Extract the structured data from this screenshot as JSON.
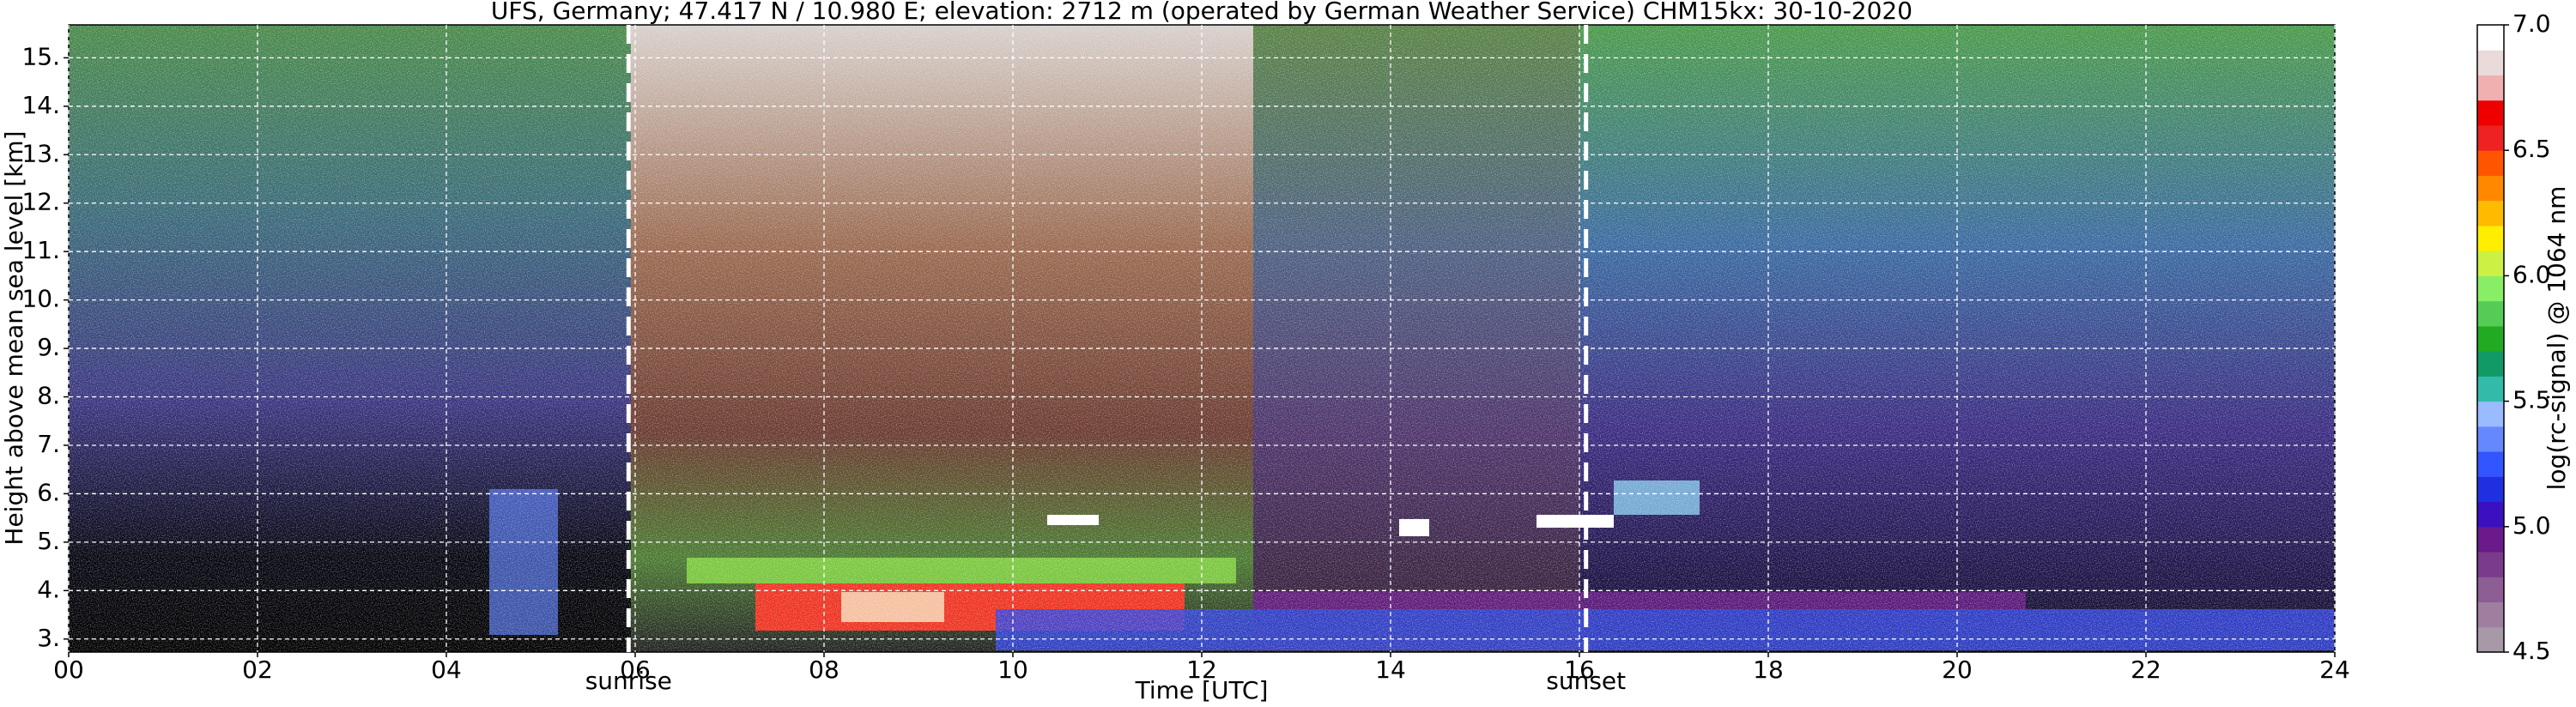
{
  "chart_data": {
    "type": "heatmap",
    "title": "UFS, Germany; 47.417 N / 10.980 E; elevation: 2712 m  (operated by German Weather Service)    CHM15kx: 30-10-2020",
    "x_label": "Time [UTC]",
    "y_label": "Height above mean sea level [km]",
    "xlim": [
      0,
      24
    ],
    "xticks": [
      {
        "value": 0,
        "label": "00"
      },
      {
        "value": 2,
        "label": "02"
      },
      {
        "value": 4,
        "label": "04"
      },
      {
        "value": 6,
        "label": "06"
      },
      {
        "value": 8,
        "label": "08"
      },
      10,
      12,
      14,
      16,
      18,
      20,
      22,
      24
    ],
    "ylim": [
      2.73,
      15.68
    ],
    "yticks": [
      {
        "value": 3,
        "label": "3."
      },
      {
        "value": 4,
        "label": "4."
      },
      {
        "value": 5,
        "label": "5."
      },
      {
        "value": 6,
        "label": "6."
      },
      {
        "value": 7,
        "label": "7."
      },
      {
        "value": 8,
        "label": "8."
      },
      {
        "value": 9,
        "label": "9."
      },
      {
        "value": 10,
        "label": "10."
      },
      {
        "value": 11,
        "label": "11."
      },
      {
        "value": 12,
        "label": "12."
      },
      {
        "value": 13,
        "label": "13."
      },
      {
        "value": 14,
        "label": "14."
      },
      {
        "value": 15,
        "label": "15."
      }
    ],
    "grid": true,
    "annotations": [
      {
        "label": "sunrise",
        "x": 5.93
      },
      {
        "label": "sunset",
        "x": 16.07
      }
    ],
    "colorbar": {
      "label": "log(rc-signal) @ 1064 nm",
      "lim": [
        4.5,
        7.0
      ],
      "ticks": [
        4.5,
        {
          "value": 5,
          "label": "5.0"
        },
        5.5,
        {
          "value": 6,
          "label": "6.0"
        },
        6.5,
        {
          "value": 7,
          "label": "7.0"
        }
      ],
      "colors": [
        "#a899a8",
        "#9f7fa0",
        "#8c5e94",
        "#7a3b8c",
        "#6a1a8a",
        "#3a10c0",
        "#2030e0",
        "#3355ff",
        "#6688ff",
        "#99bbff",
        "#33bbaa",
        "#119966",
        "#22aa22",
        "#55cc55",
        "#88ee66",
        "#ccf044",
        "#ffee00",
        "#ffbb00",
        "#ff8800",
        "#ff5500",
        "#ee2222",
        "#ee0000",
        "#f0b0b0",
        "#eadada",
        "#ffffff"
      ]
    }
  }
}
